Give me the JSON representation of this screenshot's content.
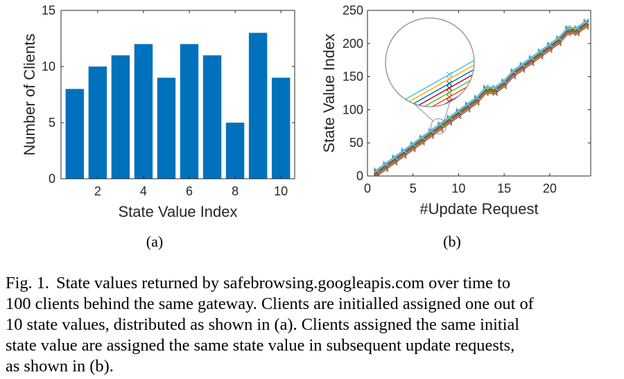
{
  "chart_data": [
    {
      "type": "bar",
      "panel_label": "(a)",
      "categories": [
        1,
        2,
        3,
        4,
        5,
        6,
        7,
        8,
        9,
        10
      ],
      "values": [
        8,
        10,
        11,
        12,
        9,
        12,
        11,
        5,
        13,
        9
      ],
      "xlabel": "State Value Index",
      "ylabel": "Number of Clients",
      "xlim": [
        0.4,
        10.6
      ],
      "ylim": [
        0,
        15
      ],
      "xticks": [
        2,
        4,
        6,
        8,
        10
      ],
      "yticks": [
        0,
        5,
        10,
        15
      ],
      "bar_color": "#0072BD",
      "grid": false
    },
    {
      "type": "line",
      "panel_label": "(b)",
      "x": [
        1,
        2,
        3,
        4,
        5,
        6,
        7,
        8,
        9,
        10,
        11,
        12,
        13,
        14,
        15,
        16,
        17,
        18,
        19,
        20,
        21,
        22,
        23,
        24
      ],
      "series": [
        {
          "values": [
            9,
            19,
            29,
            39,
            49,
            59,
            69,
            79,
            89,
            99,
            109,
            119,
            134,
            134,
            144,
            159,
            169,
            179,
            189,
            199,
            209,
            224,
            224,
            234
          ]
        },
        {
          "values": [
            8,
            18,
            28,
            38,
            48,
            58,
            68,
            78,
            88,
            98,
            108,
            118,
            133,
            133,
            143,
            158,
            168,
            178,
            188,
            198,
            208,
            223,
            223,
            233
          ]
        },
        {
          "values": [
            7,
            17,
            27,
            37,
            47,
            57,
            67,
            77,
            87,
            97,
            107,
            117,
            132,
            132,
            142,
            157,
            167,
            177,
            187,
            197,
            207,
            222,
            222,
            232
          ]
        },
        {
          "values": [
            6,
            16,
            26,
            36,
            46,
            56,
            66,
            76,
            86,
            96,
            106,
            116,
            131,
            131,
            141,
            156,
            166,
            176,
            186,
            196,
            206,
            221,
            221,
            231
          ]
        },
        {
          "values": [
            5,
            15,
            25,
            35,
            45,
            55,
            65,
            75,
            85,
            95,
            105,
            115,
            130,
            130,
            140,
            155,
            165,
            175,
            185,
            195,
            205,
            220,
            220,
            230
          ]
        },
        {
          "values": [
            4,
            14,
            24,
            34,
            44,
            54,
            64,
            74,
            84,
            94,
            104,
            114,
            129,
            129,
            139,
            154,
            164,
            174,
            184,
            194,
            204,
            219,
            219,
            229
          ]
        },
        {
          "values": [
            3,
            13,
            23,
            33,
            43,
            53,
            63,
            73,
            83,
            93,
            103,
            113,
            128,
            128,
            138,
            153,
            163,
            173,
            183,
            193,
            203,
            218,
            218,
            228
          ]
        },
        {
          "values": [
            2,
            12,
            22,
            32,
            42,
            52,
            62,
            72,
            82,
            92,
            102,
            112,
            127,
            127,
            137,
            152,
            162,
            172,
            182,
            192,
            202,
            217,
            217,
            227
          ]
        },
        {
          "values": [
            1,
            11,
            21,
            31,
            41,
            51,
            61,
            71,
            81,
            91,
            101,
            111,
            126,
            126,
            136,
            151,
            161,
            171,
            181,
            191,
            201,
            216,
            216,
            226
          ]
        },
        {
          "values": [
            0,
            10,
            20,
            30,
            40,
            50,
            60,
            70,
            80,
            90,
            100,
            110,
            125,
            125,
            135,
            150,
            160,
            170,
            180,
            190,
            200,
            215,
            215,
            225
          ]
        }
      ],
      "series_colors": [
        "#4DBEEE",
        "#EDB120",
        "#0072BD",
        "#A2142F",
        "#77AC30",
        "#D95319",
        "#7E2F8E",
        "#EDB120",
        "#77AC30",
        "#7E2F8E"
      ],
      "marker": "x",
      "xlabel": "#Update Request",
      "ylabel": "State Value Index",
      "xlim": [
        0,
        24.5
      ],
      "ylim": [
        0,
        250
      ],
      "xticks": [
        0,
        5,
        10,
        15,
        20
      ],
      "yticks": [
        0,
        50,
        100,
        150,
        200,
        250
      ],
      "annotation": "magnified inset of the lines near x = 8",
      "grid": false
    }
  ],
  "caption": {
    "label": "Fig. 1.",
    "lines": [
      "State values returned by safebrowsing.googleapis.com over time to",
      "100 clients behind the same gateway. Clients are initialled assigned one out of",
      "10 state values, distributed as shown in (a). Clients assigned the same initial",
      "state value are assigned the same state value in subsequent update requests,",
      "as shown in (b)."
    ]
  }
}
